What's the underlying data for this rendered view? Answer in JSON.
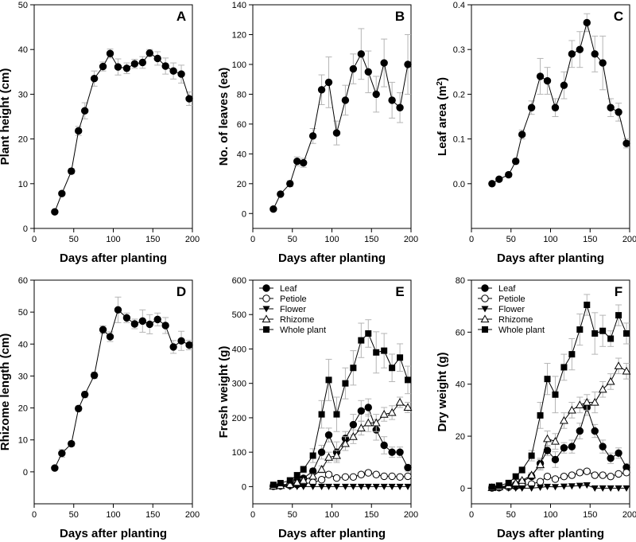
{
  "chart_data": [
    {
      "id": "A",
      "type": "line",
      "panel_label": "A",
      "xlabel": "Days after planting",
      "ylabel": "Plant height (cm)",
      "xlim": [
        0,
        200
      ],
      "ylim": [
        0,
        50
      ],
      "xticks": [
        "0",
        "50",
        "100",
        "150",
        "200"
      ],
      "yticks": [
        "0",
        "10",
        "20",
        "30",
        "40",
        "50"
      ],
      "x": [
        26,
        35,
        47,
        56,
        64,
        76,
        87,
        96,
        106,
        117,
        127,
        137,
        146,
        156,
        166,
        176,
        186,
        196
      ],
      "series": [
        {
          "name": "Plant height",
          "marker": "circle-filled",
          "values": [
            3.7,
            7.8,
            12.8,
            21.8,
            26.3,
            33.5,
            36.2,
            39.1,
            36.1,
            35.8,
            36.8,
            37.1,
            39.2,
            38.0,
            36.3,
            35.2,
            34.5,
            29.0
          ],
          "err": [
            0.2,
            0.4,
            0.6,
            1.0,
            1.8,
            1.7,
            1.0,
            1.0,
            1.8,
            1.2,
            1.0,
            1.3,
            0.8,
            1.5,
            1.8,
            1.8,
            2.0,
            1.5
          ]
        }
      ]
    },
    {
      "id": "B",
      "type": "line",
      "panel_label": "B",
      "xlabel": "Days after planting",
      "ylabel": "No. of leaves (ea)",
      "xlim": [
        0,
        200
      ],
      "ylim": [
        -10,
        140
      ],
      "xticks": [
        "0",
        "50",
        "100",
        "150",
        "200"
      ],
      "yticks": [
        "0",
        "20",
        "40",
        "60",
        "80",
        "100",
        "120",
        "140"
      ],
      "x": [
        26,
        35,
        47,
        56,
        64,
        76,
        87,
        96,
        106,
        117,
        127,
        137,
        146,
        156,
        166,
        176,
        186,
        196
      ],
      "series": [
        {
          "name": "Leaves",
          "marker": "circle-filled",
          "values": [
            3,
            13,
            20,
            35,
            34,
            52,
            83,
            88,
            54,
            76,
            97,
            107,
            95,
            80,
            101,
            76,
            71,
            100
          ],
          "err": [
            0.5,
            1,
            2,
            3,
            3,
            5,
            10,
            17,
            8,
            10,
            10,
            17,
            14,
            12,
            16,
            12,
            10,
            20
          ]
        }
      ]
    },
    {
      "id": "C",
      "type": "line",
      "panel_label": "C",
      "xlabel": "Days after planting",
      "ylabel": "Leaf area (m²)",
      "ylabel_main": "Leaf area (m",
      "ylabel_sup": "2",
      "ylabel_end": ")",
      "xlim": [
        0,
        200
      ],
      "ylim": [
        -0.1,
        0.4
      ],
      "xticks": [
        "0",
        "50",
        "100",
        "150",
        "200"
      ],
      "yticks": [
        "0.0",
        "0.1",
        "0.2",
        "0.3",
        "0.4"
      ],
      "x": [
        26,
        35,
        47,
        56,
        64,
        76,
        87,
        96,
        106,
        117,
        127,
        137,
        146,
        156,
        166,
        176,
        186,
        196
      ],
      "series": [
        {
          "name": "Leaf area",
          "marker": "circle-filled",
          "values": [
            0.0,
            0.01,
            0.02,
            0.05,
            0.11,
            0.17,
            0.24,
            0.23,
            0.17,
            0.22,
            0.29,
            0.3,
            0.36,
            0.29,
            0.27,
            0.17,
            0.16,
            0.09
          ],
          "err": [
            0.002,
            0.003,
            0.005,
            0.006,
            0.01,
            0.015,
            0.04,
            0.03,
            0.02,
            0.03,
            0.03,
            0.04,
            0.02,
            0.04,
            0.06,
            0.02,
            0.02,
            0.01
          ]
        }
      ]
    },
    {
      "id": "D",
      "type": "line",
      "panel_label": "D",
      "xlabel": "Days after planting",
      "ylabel": "Rhizome length (cm)",
      "xlim": [
        0,
        200
      ],
      "ylim": [
        -10,
        60
      ],
      "xticks": [
        "0",
        "50",
        "100",
        "150",
        "200"
      ],
      "yticks": [
        "0",
        "10",
        "20",
        "30",
        "40",
        "50",
        "60"
      ],
      "x": [
        26,
        35,
        47,
        56,
        64,
        76,
        87,
        96,
        106,
        117,
        127,
        137,
        146,
        156,
        166,
        176,
        186,
        196
      ],
      "series": [
        {
          "name": "Rhizome length",
          "marker": "circle-filled",
          "values": [
            1.2,
            5.8,
            8.8,
            19.8,
            24.2,
            30.2,
            44.5,
            42.3,
            50.7,
            48.2,
            46.3,
            47.2,
            46.2,
            47.7,
            45.8,
            39.1,
            41.0,
            39.7
          ],
          "err": [
            0.3,
            1.2,
            0.8,
            0.8,
            1.0,
            1.0,
            1.2,
            1.5,
            4.0,
            1.5,
            1.5,
            3.5,
            3.0,
            2.0,
            2.5,
            2.0,
            3.0,
            1.5
          ]
        }
      ]
    },
    {
      "id": "E",
      "type": "line",
      "panel_label": "E",
      "xlabel": "Days after planting",
      "ylabel": "Fresh weight (g)",
      "xlim": [
        0,
        200
      ],
      "ylim": [
        -50,
        600
      ],
      "xticks": [
        "0",
        "50",
        "100",
        "150",
        "200"
      ],
      "yticks": [
        "0",
        "100",
        "200",
        "300",
        "400",
        "500",
        "600"
      ],
      "x": [
        26,
        35,
        47,
        56,
        64,
        76,
        87,
        96,
        106,
        117,
        127,
        137,
        146,
        156,
        166,
        176,
        186,
        196
      ],
      "legend": [
        "Leaf",
        "Petiole",
        "Flower",
        "Rhizome",
        "Whole plant"
      ],
      "series": [
        {
          "name": "Leaf",
          "marker": "circle-filled",
          "values": [
            2,
            4,
            8,
            18,
            24,
            45,
            100,
            150,
            100,
            140,
            180,
            220,
            230,
            165,
            120,
            100,
            100,
            55
          ],
          "err": [
            1,
            2,
            3,
            5,
            6,
            8,
            20,
            20,
            30,
            20,
            30,
            30,
            25,
            30,
            25,
            15,
            15,
            10
          ]
        },
        {
          "name": "Petiole",
          "marker": "circle-open",
          "values": [
            1,
            2,
            3,
            6,
            8,
            12,
            20,
            35,
            25,
            28,
            28,
            35,
            40,
            35,
            30,
            30,
            28,
            30
          ],
          "err": [
            0,
            1,
            1,
            2,
            2,
            3,
            4,
            5,
            4,
            4,
            5,
            5,
            5,
            5,
            4,
            4,
            4,
            5
          ]
        },
        {
          "name": "Flower",
          "marker": "triangle-down-filled",
          "values": [
            0,
            0,
            0,
            0,
            0,
            0,
            0,
            0,
            0,
            0,
            0,
            0,
            0,
            0,
            0,
            0,
            0,
            0
          ],
          "err": [
            0,
            0,
            0,
            0,
            0,
            0,
            0,
            0,
            0,
            0,
            0,
            0,
            0,
            0,
            0,
            0,
            0,
            0
          ]
        },
        {
          "name": "Rhizome",
          "marker": "triangle-up-open",
          "values": [
            1,
            3,
            6,
            12,
            18,
            30,
            50,
            85,
            90,
            125,
            145,
            170,
            185,
            185,
            210,
            215,
            245,
            230
          ],
          "err": [
            0,
            1,
            2,
            3,
            4,
            6,
            10,
            15,
            15,
            20,
            20,
            20,
            25,
            25,
            20,
            20,
            15,
            15
          ]
        },
        {
          "name": "Whole plant",
          "marker": "square-filled",
          "values": [
            5,
            10,
            18,
            33,
            50,
            90,
            210,
            310,
            210,
            300,
            345,
            425,
            445,
            390,
            395,
            345,
            375,
            310
          ],
          "err": [
            1,
            2,
            4,
            8,
            10,
            20,
            40,
            60,
            50,
            45,
            50,
            50,
            40,
            60,
            50,
            40,
            40,
            40
          ]
        }
      ]
    },
    {
      "id": "F",
      "type": "line",
      "panel_label": "F",
      "xlabel": "Days after planting",
      "ylabel": "Dry weight (g)",
      "xlim": [
        0,
        200
      ],
      "ylim": [
        -6,
        80
      ],
      "xticks": [
        "0",
        "50",
        "100",
        "150",
        "200"
      ],
      "yticks": [
        "0",
        "20",
        "40",
        "60",
        "80"
      ],
      "x": [
        26,
        35,
        47,
        56,
        64,
        76,
        87,
        96,
        106,
        117,
        127,
        137,
        146,
        156,
        166,
        176,
        186,
        196
      ],
      "legend": [
        "Leaf",
        "Petiole",
        "Flower",
        "Rhizome",
        "Whole plant"
      ],
      "series": [
        {
          "name": "Leaf",
          "marker": "circle-filled",
          "values": [
            0.2,
            0.4,
            0.8,
            1.5,
            2.5,
            4.5,
            9.5,
            14.5,
            11.0,
            15.5,
            16.0,
            22.0,
            31.0,
            22.0,
            16.0,
            11.5,
            13.5,
            8.0
          ],
          "err": [
            0.1,
            0.2,
            0.3,
            0.5,
            0.6,
            1.0,
            2.0,
            2.0,
            3.0,
            2.0,
            2.5,
            3.0,
            3.0,
            2.5,
            2.5,
            2.0,
            2.0,
            1.5
          ]
        },
        {
          "name": "Petiole",
          "marker": "circle-open",
          "values": [
            0.1,
            0.2,
            0.4,
            0.7,
            1.0,
            1.6,
            2.5,
            4.5,
            3.5,
            4.5,
            5.0,
            6.0,
            6.5,
            5.0,
            5.0,
            4.5,
            5.5,
            6.0
          ],
          "err": [
            0,
            0.1,
            0.1,
            0.2,
            0.3,
            0.4,
            0.5,
            0.6,
            0.5,
            0.6,
            0.8,
            0.8,
            0.8,
            0.7,
            0.7,
            0.6,
            0.8,
            0.8
          ]
        },
        {
          "name": "Flower",
          "marker": "triangle-down-filled",
          "values": [
            0,
            0,
            0,
            0,
            0,
            0,
            0.3,
            0.6,
            0.5,
            0.7,
            0.8,
            1.0,
            1.2,
            0,
            0,
            0,
            0,
            0
          ],
          "err": [
            0,
            0,
            0,
            0,
            0,
            0,
            0.1,
            0.1,
            0.1,
            0.1,
            0.1,
            0.2,
            0.2,
            0,
            0,
            0,
            0,
            0
          ]
        },
        {
          "name": "Rhizome",
          "marker": "triangle-up-open",
          "values": [
            0.2,
            0.5,
            1.0,
            2.0,
            3.0,
            5.0,
            9.0,
            19.0,
            18.0,
            26.0,
            30.0,
            32.0,
            33.0,
            33.0,
            38.0,
            41.0,
            47.0,
            45.0
          ],
          "err": [
            0.1,
            0.2,
            0.3,
            0.5,
            0.6,
            1.0,
            2.0,
            3.0,
            3.0,
            3.0,
            3.0,
            3.0,
            3.0,
            4.0,
            3.0,
            3.0,
            3.0,
            3.0
          ]
        },
        {
          "name": "Whole plant",
          "marker": "square-filled",
          "values": [
            0.5,
            1.0,
            2.0,
            4.5,
            7.0,
            12.5,
            28.0,
            42.0,
            36.0,
            46.5,
            51.5,
            61.0,
            70.5,
            59.5,
            60.5,
            57.5,
            66.5,
            59.5
          ],
          "err": [
            0.1,
            0.2,
            0.5,
            0.8,
            1.2,
            2.0,
            5.0,
            6.0,
            7.0,
            5.0,
            6.0,
            6.0,
            4.0,
            8.0,
            6.0,
            3.0,
            4.0,
            4.0
          ]
        }
      ]
    }
  ]
}
